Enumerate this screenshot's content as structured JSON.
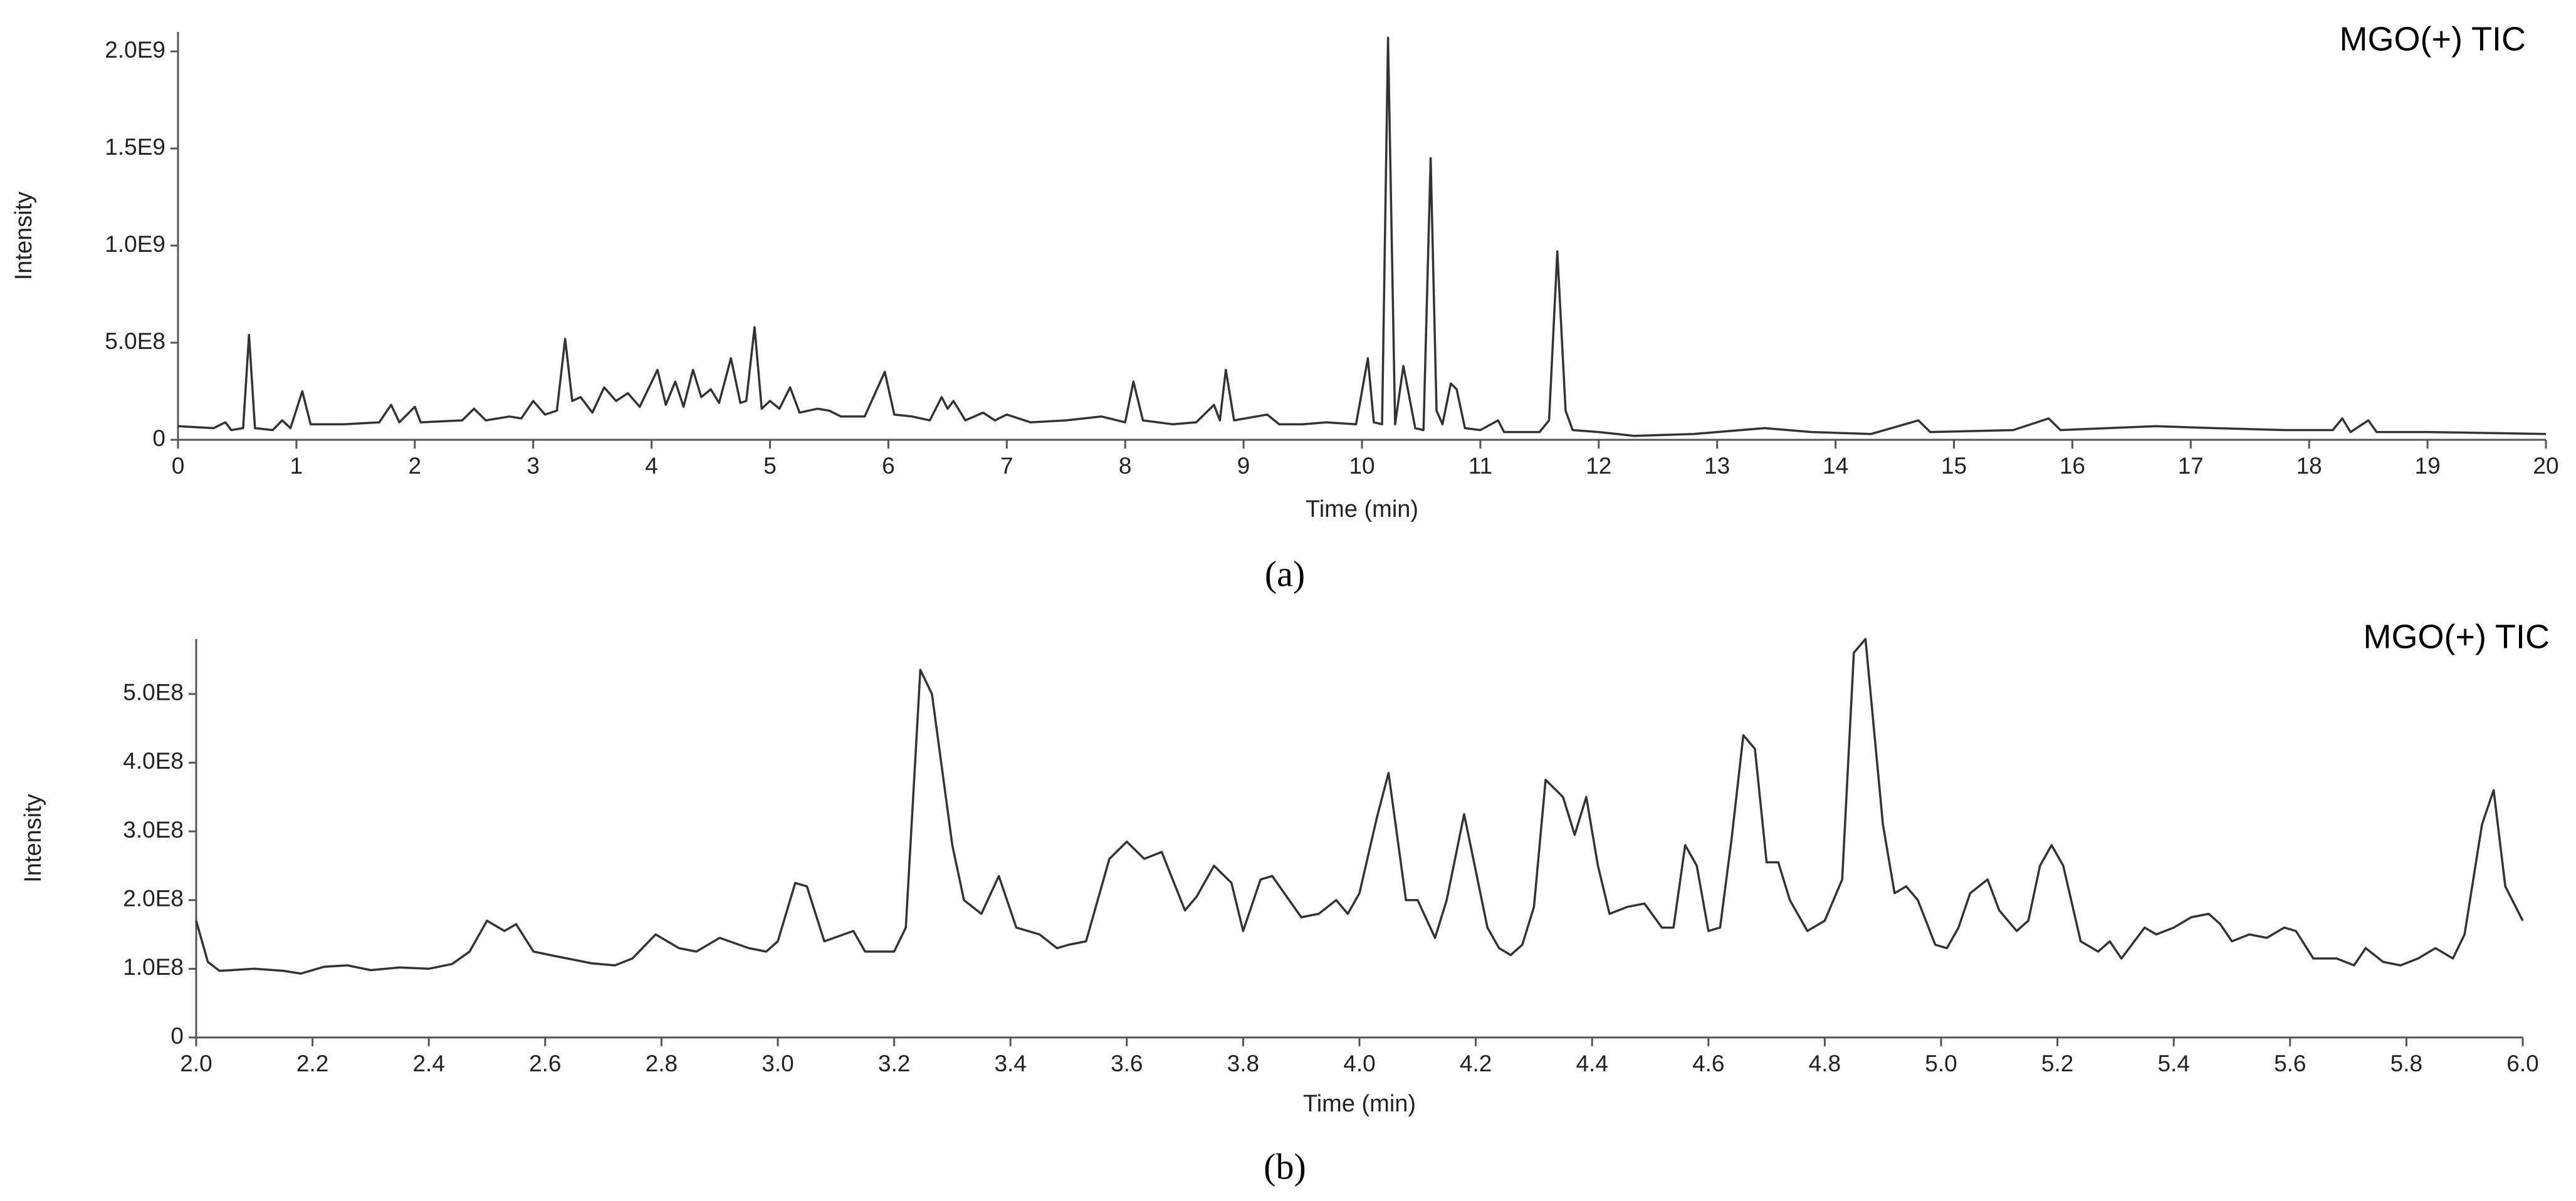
{
  "chart_data": [
    {
      "type": "line",
      "title": "MGO(+) TIC",
      "caption": "(a)",
      "xlabel": "Time (min)",
      "ylabel": "Intensity",
      "color": "#333333",
      "xlim": [
        0,
        20
      ],
      "ylim": [
        0,
        2100000000.0
      ],
      "xticks": [
        0,
        1,
        2,
        3,
        4,
        5,
        6,
        7,
        8,
        9,
        10,
        11,
        12,
        13,
        14,
        15,
        16,
        17,
        18,
        19,
        20
      ],
      "yticks": [
        0,
        {
          "value": 500000000.0,
          "label": "5.0E8"
        },
        {
          "value": 1000000000.0,
          "label": "1.0E9"
        },
        {
          "value": 1500000000.0,
          "label": "1.5E9"
        },
        {
          "value": 2000000000.0,
          "label": "2.0E9"
        }
      ],
      "x": [
        0,
        0.3,
        0.4,
        0.45,
        0.55,
        0.6,
        0.65,
        0.8,
        0.88,
        0.95,
        1.05,
        1.12,
        1.4,
        1.7,
        1.8,
        1.87,
        2.0,
        2.05,
        2.4,
        2.5,
        2.6,
        2.8,
        2.9,
        3.0,
        3.1,
        3.2,
        3.27,
        3.33,
        3.4,
        3.5,
        3.6,
        3.7,
        3.8,
        3.9,
        4.05,
        4.12,
        4.2,
        4.27,
        4.35,
        4.42,
        4.5,
        4.57,
        4.67,
        4.75,
        4.8,
        4.87,
        4.93,
        5.0,
        5.08,
        5.17,
        5.25,
        5.4,
        5.5,
        5.6,
        5.8,
        5.97,
        6.05,
        6.2,
        6.35,
        6.45,
        6.5,
        6.55,
        6.65,
        6.8,
        6.9,
        7.0,
        7.2,
        7.5,
        7.8,
        8.0,
        8.07,
        8.15,
        8.4,
        8.6,
        8.75,
        8.8,
        8.85,
        8.92,
        9.2,
        9.3,
        9.5,
        9.7,
        9.95,
        10.05,
        10.1,
        10.17,
        10.22,
        10.28,
        10.35,
        10.45,
        10.52,
        10.58,
        10.63,
        10.68,
        10.75,
        10.8,
        10.87,
        11.0,
        11.15,
        11.2,
        11.5,
        11.58,
        11.65,
        11.72,
        11.78,
        12.0,
        12.3,
        12.8,
        13.4,
        13.8,
        14.3,
        14.7,
        14.8,
        15.5,
        15.8,
        15.9,
        16.3,
        16.7,
        17.2,
        17.8,
        18.2,
        18.28,
        18.35,
        18.5,
        18.57,
        19.0,
        19.5,
        20.0
      ],
      "values": [
        70000000.0,
        60000000.0,
        90000000.0,
        50000000.0,
        60000000.0,
        540000000.0,
        60000000.0,
        50000000.0,
        100000000.0,
        60000000.0,
        250000000.0,
        80000000.0,
        80000000.0,
        90000000.0,
        180000000.0,
        90000000.0,
        170000000.0,
        90000000.0,
        100000000.0,
        160000000.0,
        100000000.0,
        120000000.0,
        110000000.0,
        200000000.0,
        130000000.0,
        150000000.0,
        520000000.0,
        200000000.0,
        220000000.0,
        140000000.0,
        270000000.0,
        200000000.0,
        240000000.0,
        170000000.0,
        360000000.0,
        180000000.0,
        300000000.0,
        170000000.0,
        360000000.0,
        220000000.0,
        260000000.0,
        190000000.0,
        420000000.0,
        190000000.0,
        200000000.0,
        580000000.0,
        160000000.0,
        200000000.0,
        160000000.0,
        270000000.0,
        140000000.0,
        160000000.0,
        150000000.0,
        120000000.0,
        120000000.0,
        350000000.0,
        130000000.0,
        120000000.0,
        100000000.0,
        220000000.0,
        160000000.0,
        200000000.0,
        100000000.0,
        140000000.0,
        100000000.0,
        130000000.0,
        90000000.0,
        100000000.0,
        120000000.0,
        90000000.0,
        300000000.0,
        100000000.0,
        80000000.0,
        90000000.0,
        180000000.0,
        100000000.0,
        360000000.0,
        100000000.0,
        130000000.0,
        80000000.0,
        80000000.0,
        90000000.0,
        80000000.0,
        420000000.0,
        90000000.0,
        80000000.0,
        2070000000.0,
        80000000.0,
        380000000.0,
        60000000.0,
        50000000.0,
        1450000000.0,
        150000000.0,
        80000000.0,
        290000000.0,
        260000000.0,
        60000000.0,
        50000000.0,
        100000000.0,
        40000000.0,
        40000000.0,
        100000000.0,
        970000000.0,
        150000000.0,
        50000000.0,
        40000000.0,
        20000000.0,
        30000000.0,
        60000000.0,
        40000000.0,
        30000000.0,
        100000000.0,
        40000000.0,
        50000000.0,
        110000000.0,
        50000000.0,
        60000000.0,
        70000000.0,
        60000000.0,
        50000000.0,
        50000000.0,
        110000000.0,
        40000000.0,
        100000000.0,
        40000000.0,
        40000000.0,
        35000000.0,
        30000000.0
      ]
    },
    {
      "type": "line",
      "title": "MGO(+) TIC",
      "caption": "(b)",
      "xlabel": "Time (min)",
      "ylabel": "Intensity",
      "color": "#333333",
      "xlim": [
        2,
        6
      ],
      "ylim": [
        0,
        580000000.0
      ],
      "xticks": [
        {
          "value": 2,
          "label": "2.0"
        },
        2.2,
        2.4,
        2.6,
        2.8,
        {
          "value": 3,
          "label": "3.0"
        },
        3.2,
        3.4,
        3.6,
        3.8,
        {
          "value": 4,
          "label": "4.0"
        },
        4.2,
        4.4,
        4.6,
        4.8,
        {
          "value": 5,
          "label": "5.0"
        },
        5.2,
        5.4,
        5.6,
        5.8,
        {
          "value": 6,
          "label": "6.0"
        }
      ],
      "yticks": [
        0,
        {
          "value": 100000000.0,
          "label": "1.0E8"
        },
        {
          "value": 200000000.0,
          "label": "2.0E8"
        },
        {
          "value": 300000000.0,
          "label": "3.0E8"
        },
        {
          "value": 400000000.0,
          "label": "4.0E8"
        },
        {
          "value": 500000000.0,
          "label": "5.0E8"
        }
      ],
      "x": [
        2.0,
        2.02,
        2.04,
        2.1,
        2.15,
        2.18,
        2.22,
        2.26,
        2.3,
        2.35,
        2.4,
        2.44,
        2.47,
        2.5,
        2.53,
        2.55,
        2.58,
        2.62,
        2.68,
        2.72,
        2.75,
        2.79,
        2.83,
        2.86,
        2.9,
        2.95,
        2.98,
        3.0,
        3.03,
        3.05,
        3.08,
        3.13,
        3.15,
        3.2,
        3.22,
        3.245,
        3.265,
        3.3,
        3.32,
        3.35,
        3.38,
        3.41,
        3.45,
        3.48,
        3.5,
        3.53,
        3.57,
        3.6,
        3.63,
        3.66,
        3.7,
        3.72,
        3.75,
        3.78,
        3.8,
        3.83,
        3.85,
        3.9,
        3.93,
        3.96,
        3.98,
        4.0,
        4.03,
        4.05,
        4.08,
        4.1,
        4.13,
        4.15,
        4.18,
        4.22,
        4.24,
        4.26,
        4.28,
        4.3,
        4.32,
        4.35,
        4.37,
        4.39,
        4.41,
        4.43,
        4.46,
        4.49,
        4.52,
        4.54,
        4.56,
        4.58,
        4.6,
        4.62,
        4.64,
        4.66,
        4.68,
        4.7,
        4.72,
        4.74,
        4.77,
        4.8,
        4.83,
        4.85,
        4.87,
        4.9,
        4.92,
        4.94,
        4.96,
        4.99,
        5.01,
        5.03,
        5.05,
        5.08,
        5.1,
        5.13,
        5.15,
        5.17,
        5.19,
        5.21,
        5.24,
        5.27,
        5.29,
        5.31,
        5.35,
        5.37,
        5.4,
        5.43,
        5.46,
        5.48,
        5.5,
        5.53,
        5.56,
        5.59,
        5.61,
        5.64,
        5.68,
        5.71,
        5.73,
        5.76,
        5.79,
        5.82,
        5.85,
        5.88,
        5.9,
        5.93,
        5.95,
        5.97,
        6.0
      ],
      "values": [
        170000000.0,
        110000000.0,
        97000000.0,
        100000000.0,
        97000000.0,
        93000000.0,
        103000000.0,
        105000000.0,
        98000000.0,
        102000000.0,
        100000000.0,
        107000000.0,
        125000000.0,
        170000000.0,
        155000000.0,
        165000000.0,
        125000000.0,
        118000000.0,
        108000000.0,
        105000000.0,
        115000000.0,
        150000000.0,
        130000000.0,
        125000000.0,
        145000000.0,
        130000000.0,
        125000000.0,
        140000000.0,
        225000000.0,
        220000000.0,
        140000000.0,
        155000000.0,
        125000000.0,
        125000000.0,
        160000000.0,
        535000000.0,
        500000000.0,
        280000000.0,
        200000000.0,
        180000000.0,
        235000000.0,
        160000000.0,
        150000000.0,
        130000000.0,
        135000000.0,
        140000000.0,
        260000000.0,
        285000000.0,
        260000000.0,
        270000000.0,
        185000000.0,
        205000000.0,
        250000000.0,
        225000000.0,
        155000000.0,
        230000000.0,
        235000000.0,
        175000000.0,
        180000000.0,
        200000000.0,
        180000000.0,
        210000000.0,
        320000000.0,
        385000000.0,
        200000000.0,
        200000000.0,
        145000000.0,
        200000000.0,
        325000000.0,
        160000000.0,
        130000000.0,
        120000000.0,
        135000000.0,
        190000000.0,
        375000000.0,
        350000000.0,
        295000000.0,
        350000000.0,
        250000000.0,
        180000000.0,
        190000000.0,
        195000000.0,
        160000000.0,
        160000000.0,
        280000000.0,
        250000000.0,
        155000000.0,
        160000000.0,
        290000000.0,
        440000000.0,
        420000000.0,
        255000000.0,
        255000000.0,
        200000000.0,
        155000000.0,
        170000000.0,
        230000000.0,
        560000000.0,
        580000000.0,
        310000000.0,
        210000000.0,
        220000000.0,
        200000000.0,
        135000000.0,
        130000000.0,
        160000000.0,
        210000000.0,
        230000000.0,
        185000000.0,
        155000000.0,
        170000000.0,
        250000000.0,
        280000000.0,
        250000000.0,
        140000000.0,
        125000000.0,
        140000000.0,
        115000000.0,
        160000000.0,
        150000000.0,
        160000000.0,
        175000000.0,
        180000000.0,
        165000000.0,
        140000000.0,
        150000000.0,
        145000000.0,
        160000000.0,
        155000000.0,
        115000000.0,
        115000000.0,
        105000000.0,
        130000000.0,
        110000000.0,
        105000000.0,
        115000000.0,
        130000000.0,
        115000000.0,
        150000000.0,
        310000000.0,
        360000000.0,
        220000000.0,
        170000000.0
      ]
    }
  ]
}
